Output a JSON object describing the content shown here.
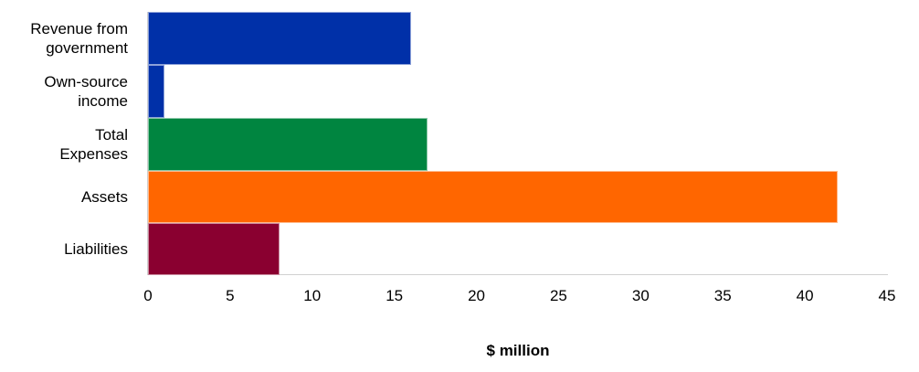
{
  "chart_data": {
    "type": "bar",
    "orientation": "horizontal",
    "title": "",
    "xlabel": "$ million",
    "ylabel": "",
    "categories": [
      "Revenue from\ngovernment",
      "Own-source\nincome",
      "Total\nExpenses",
      "Assets",
      "Liabilities"
    ],
    "values": [
      16,
      1,
      17,
      42,
      8
    ],
    "colors": [
      "#0030a8",
      "#0030a8",
      "#008540",
      "#ff6600",
      "#8a0030"
    ],
    "xlim": [
      0,
      45
    ],
    "xticks": [
      "0",
      "5",
      "10",
      "15",
      "20",
      "25",
      "30",
      "35",
      "40",
      "45"
    ],
    "grid": false,
    "legend": null
  }
}
